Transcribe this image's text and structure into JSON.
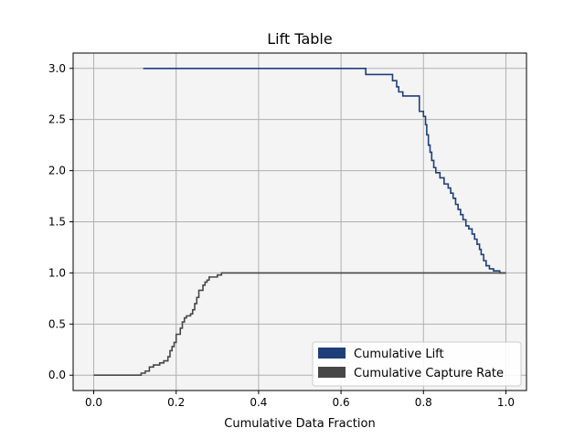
{
  "chart_data": {
    "type": "line",
    "title": "Lift Table",
    "xlabel": "Cumulative Data Fraction",
    "ylabel": "",
    "xlim": [
      -0.05,
      1.05
    ],
    "ylim": [
      -0.15,
      3.15
    ],
    "xticks": [
      0.0,
      0.2,
      0.4,
      0.6,
      0.8,
      1.0
    ],
    "xtick_labels": [
      "0.0",
      "0.2",
      "0.4",
      "0.6",
      "0.8",
      "1.0"
    ],
    "yticks": [
      0.0,
      0.5,
      1.0,
      1.5,
      2.0,
      2.5,
      3.0
    ],
    "ytick_labels": [
      "0.0",
      "0.5",
      "1.0",
      "1.5",
      "2.0",
      "2.5",
      "3.0"
    ],
    "grid": true,
    "legend_position": "lower-right",
    "plot_background": "#f4f4f4",
    "series": [
      {
        "name": "Cumulative Lift",
        "color": "#1f3f7a",
        "step": true,
        "points": [
          [
            0.12,
            3.0
          ],
          [
            0.66,
            3.0
          ],
          [
            0.66,
            2.94
          ],
          [
            0.725,
            2.94
          ],
          [
            0.725,
            2.88
          ],
          [
            0.735,
            2.88
          ],
          [
            0.735,
            2.82
          ],
          [
            0.74,
            2.82
          ],
          [
            0.74,
            2.77
          ],
          [
            0.75,
            2.77
          ],
          [
            0.75,
            2.73
          ],
          [
            0.79,
            2.73
          ],
          [
            0.79,
            2.58
          ],
          [
            0.8,
            2.58
          ],
          [
            0.8,
            2.53
          ],
          [
            0.805,
            2.53
          ],
          [
            0.805,
            2.45
          ],
          [
            0.808,
            2.45
          ],
          [
            0.808,
            2.35
          ],
          [
            0.812,
            2.35
          ],
          [
            0.812,
            2.25
          ],
          [
            0.816,
            2.25
          ],
          [
            0.816,
            2.18
          ],
          [
            0.82,
            2.18
          ],
          [
            0.82,
            2.1
          ],
          [
            0.825,
            2.1
          ],
          [
            0.825,
            2.03
          ],
          [
            0.83,
            2.03
          ],
          [
            0.83,
            1.98
          ],
          [
            0.84,
            1.98
          ],
          [
            0.84,
            1.93
          ],
          [
            0.85,
            1.93
          ],
          [
            0.85,
            1.87
          ],
          [
            0.86,
            1.87
          ],
          [
            0.86,
            1.83
          ],
          [
            0.866,
            1.83
          ],
          [
            0.866,
            1.78
          ],
          [
            0.872,
            1.78
          ],
          [
            0.872,
            1.73
          ],
          [
            0.878,
            1.73
          ],
          [
            0.878,
            1.67
          ],
          [
            0.884,
            1.67
          ],
          [
            0.884,
            1.62
          ],
          [
            0.89,
            1.62
          ],
          [
            0.89,
            1.57
          ],
          [
            0.896,
            1.57
          ],
          [
            0.896,
            1.52
          ],
          [
            0.903,
            1.52
          ],
          [
            0.903,
            1.46
          ],
          [
            0.91,
            1.46
          ],
          [
            0.91,
            1.43
          ],
          [
            0.918,
            1.43
          ],
          [
            0.918,
            1.38
          ],
          [
            0.924,
            1.38
          ],
          [
            0.924,
            1.33
          ],
          [
            0.93,
            1.33
          ],
          [
            0.93,
            1.28
          ],
          [
            0.936,
            1.28
          ],
          [
            0.936,
            1.23
          ],
          [
            0.94,
            1.23
          ],
          [
            0.94,
            1.18
          ],
          [
            0.946,
            1.18
          ],
          [
            0.946,
            1.12
          ],
          [
            0.952,
            1.12
          ],
          [
            0.952,
            1.07
          ],
          [
            0.96,
            1.07
          ],
          [
            0.96,
            1.04
          ],
          [
            0.97,
            1.04
          ],
          [
            0.97,
            1.02
          ],
          [
            0.985,
            1.02
          ],
          [
            0.985,
            1.0
          ],
          [
            1.0,
            1.0
          ]
        ]
      },
      {
        "name": "Cumulative Capture Rate",
        "color": "#474747",
        "step": true,
        "points": [
          [
            0.0,
            0.0
          ],
          [
            0.115,
            0.0
          ],
          [
            0.115,
            0.02
          ],
          [
            0.125,
            0.02
          ],
          [
            0.125,
            0.04
          ],
          [
            0.135,
            0.04
          ],
          [
            0.135,
            0.08
          ],
          [
            0.145,
            0.08
          ],
          [
            0.145,
            0.1
          ],
          [
            0.16,
            0.1
          ],
          [
            0.16,
            0.12
          ],
          [
            0.17,
            0.12
          ],
          [
            0.17,
            0.14
          ],
          [
            0.18,
            0.14
          ],
          [
            0.18,
            0.18
          ],
          [
            0.185,
            0.18
          ],
          [
            0.185,
            0.24
          ],
          [
            0.19,
            0.24
          ],
          [
            0.19,
            0.28
          ],
          [
            0.195,
            0.28
          ],
          [
            0.195,
            0.32
          ],
          [
            0.2,
            0.32
          ],
          [
            0.2,
            0.4
          ],
          [
            0.21,
            0.4
          ],
          [
            0.21,
            0.46
          ],
          [
            0.215,
            0.46
          ],
          [
            0.215,
            0.52
          ],
          [
            0.22,
            0.52
          ],
          [
            0.22,
            0.56
          ],
          [
            0.225,
            0.56
          ],
          [
            0.225,
            0.58
          ],
          [
            0.235,
            0.58
          ],
          [
            0.235,
            0.6
          ],
          [
            0.24,
            0.6
          ],
          [
            0.24,
            0.64
          ],
          [
            0.245,
            0.64
          ],
          [
            0.245,
            0.7
          ],
          [
            0.25,
            0.7
          ],
          [
            0.25,
            0.76
          ],
          [
            0.255,
            0.76
          ],
          [
            0.255,
            0.83
          ],
          [
            0.265,
            0.83
          ],
          [
            0.265,
            0.88
          ],
          [
            0.27,
            0.88
          ],
          [
            0.27,
            0.91
          ],
          [
            0.275,
            0.91
          ],
          [
            0.275,
            0.93
          ],
          [
            0.28,
            0.93
          ],
          [
            0.28,
            0.96
          ],
          [
            0.3,
            0.96
          ],
          [
            0.3,
            0.98
          ],
          [
            0.31,
            0.98
          ],
          [
            0.31,
            1.0
          ],
          [
            1.0,
            1.0
          ]
        ]
      }
    ]
  }
}
